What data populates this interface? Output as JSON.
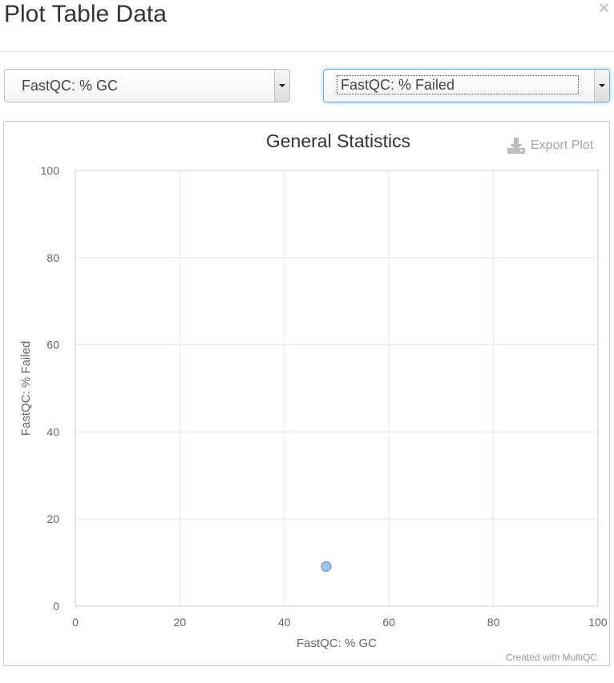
{
  "modal": {
    "title": "Plot Table Data",
    "close_label": "×"
  },
  "selectors": {
    "x_selected": "FastQC: % GC",
    "y_selected": "FastQC: % Failed"
  },
  "export": {
    "label": "Export Plot"
  },
  "credit": "Created with MultiQC",
  "colors": {
    "point_fill": "#9ec6eb",
    "point_stroke": "#6e95bd",
    "grid": "#e6e6e6",
    "axis": "#c0d0e0"
  },
  "chart_data": {
    "type": "scatter",
    "title": "General Statistics",
    "xlabel": "FastQC: % GC",
    "ylabel": "FastQC: % Failed",
    "xlim": [
      0,
      100
    ],
    "ylim": [
      0,
      100
    ],
    "xticks": [
      0,
      20,
      40,
      60,
      80,
      100
    ],
    "yticks": [
      0,
      20,
      40,
      60,
      80,
      100
    ],
    "grid": true,
    "points": [
      {
        "x": 48,
        "y": 9.1
      }
    ]
  }
}
